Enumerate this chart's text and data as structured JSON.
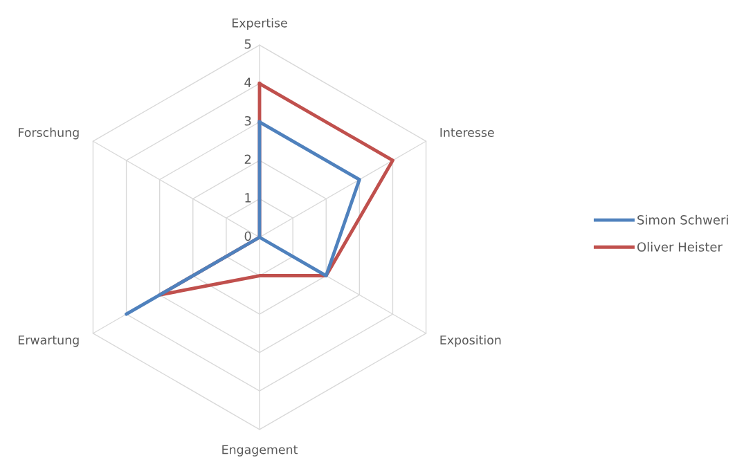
{
  "chart_data": {
    "type": "radar",
    "categories": [
      "Expertise",
      "Interesse",
      "Exposition",
      "Engagement",
      "Erwartung",
      "Forschung"
    ],
    "series": [
      {
        "name": "Simon Schweri",
        "color": "#4f81bd",
        "values": [
          3,
          3,
          2,
          0,
          4,
          0
        ]
      },
      {
        "name": "Oliver Heister",
        "color": "#c0504d",
        "values": [
          4,
          4,
          2,
          1,
          3,
          0
        ]
      }
    ],
    "ylim": [
      0,
      5
    ],
    "yticks": [
      0,
      1,
      2,
      3,
      4,
      5
    ],
    "grid": true,
    "legend": "right",
    "marker": "none",
    "line_style": "solid"
  }
}
